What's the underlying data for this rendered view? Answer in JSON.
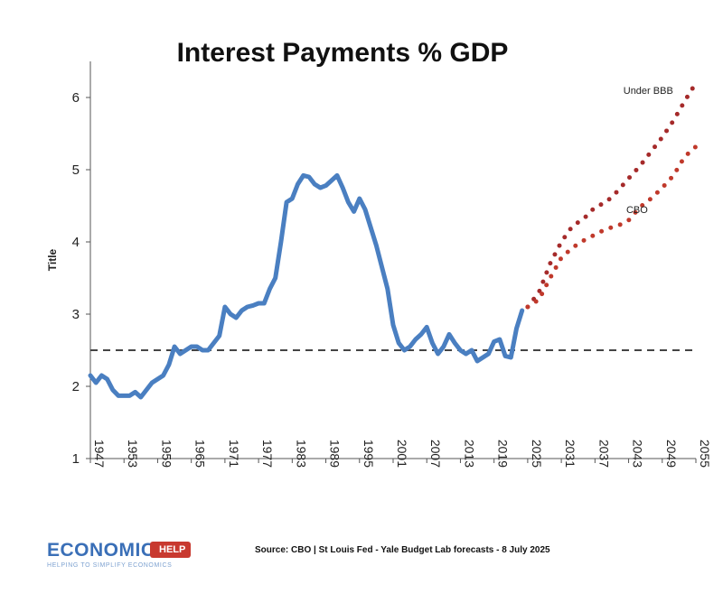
{
  "chart_data": {
    "type": "line",
    "title": "Interest Payments % GDP",
    "ylabel": "Title",
    "xlabel": "",
    "ylim": [
      1,
      6.5
    ],
    "xlim": [
      1947,
      2055
    ],
    "yticks": [
      1,
      2,
      3,
      4,
      5,
      6
    ],
    "xticks": [
      1947,
      1953,
      1959,
      1965,
      1971,
      1977,
      1983,
      1989,
      1995,
      2001,
      2007,
      2013,
      2019,
      2025,
      2031,
      2037,
      2043,
      2049,
      2055
    ],
    "reference_line": {
      "y": 2.5,
      "style": "dashed"
    },
    "series": [
      {
        "style": "solid",
        "color": "#4a7fc1",
        "x": [
          1947,
          1948,
          1949,
          1950,
          1951,
          1952,
          1953,
          1954,
          1955,
          1956,
          1957,
          1958,
          1959,
          1960,
          1961,
          1962,
          1963,
          1964,
          1965,
          1966,
          1967,
          1968,
          1969,
          1970,
          1971,
          1972,
          1973,
          1974,
          1975,
          1976,
          1977,
          1978,
          1979,
          1980,
          1981,
          1982,
          1983,
          1984,
          1985,
          1986,
          1987,
          1988,
          1989,
          1990,
          1991,
          1992,
          1993,
          1994,
          1995,
          1996,
          1997,
          1998,
          1999,
          2000,
          2001,
          2002,
          2003,
          2004,
          2005,
          2006,
          2007,
          2008,
          2009,
          2010,
          2011,
          2012,
          2013,
          2014,
          2015,
          2016,
          2017,
          2018,
          2019,
          2020,
          2021,
          2022,
          2023,
          2024
        ],
        "y": [
          2.15,
          2.05,
          2.15,
          2.1,
          1.95,
          1.87,
          1.87,
          1.87,
          1.92,
          1.85,
          1.95,
          2.05,
          2.1,
          2.15,
          2.3,
          2.55,
          2.45,
          2.5,
          2.55,
          2.55,
          2.5,
          2.5,
          2.6,
          2.7,
          3.1,
          3.0,
          2.95,
          3.05,
          3.1,
          3.12,
          3.15,
          3.15,
          3.35,
          3.5,
          4.0,
          4.55,
          4.6,
          4.8,
          4.92,
          4.9,
          4.8,
          4.75,
          4.78,
          4.85,
          4.92,
          4.75,
          4.55,
          4.42,
          4.6,
          4.45,
          4.2,
          3.95,
          3.65,
          3.35,
          2.85,
          2.6,
          2.5,
          2.55,
          2.65,
          2.72,
          2.82,
          2.6,
          2.45,
          2.55,
          2.72,
          2.6,
          2.5,
          2.45,
          2.5,
          2.35,
          2.4,
          2.45,
          2.62,
          2.65,
          2.42,
          2.4,
          2.8,
          3.05
        ]
      },
      {
        "name": "Under BBB",
        "style": "dotted",
        "color": "#a52a2a",
        "x": [
          2025,
          2027,
          2029,
          2031,
          2033,
          2035,
          2037,
          2039,
          2041,
          2043,
          2045,
          2047,
          2049,
          2051,
          2053,
          2055
        ],
        "y": [
          3.1,
          3.3,
          3.7,
          4.0,
          4.22,
          4.32,
          4.48,
          4.55,
          4.7,
          4.88,
          5.05,
          5.25,
          5.45,
          5.68,
          5.95,
          6.2
        ]
      },
      {
        "name": "CBO",
        "style": "dotted",
        "color": "#c0392b",
        "x": [
          2025,
          2027,
          2029,
          2031,
          2033,
          2035,
          2037,
          2039,
          2041,
          2043,
          2045,
          2047,
          2049,
          2051,
          2053,
          2055
        ],
        "y": [
          3.1,
          3.2,
          3.5,
          3.78,
          3.92,
          4.02,
          4.1,
          4.18,
          4.22,
          4.3,
          4.48,
          4.6,
          4.75,
          4.92,
          5.18,
          5.32
        ]
      }
    ],
    "annotations": [
      {
        "text": "Under BBB",
        "x": 2046.5,
        "y": 6.05
      },
      {
        "text": "CBO",
        "x": 2044.5,
        "y": 4.4
      }
    ]
  },
  "footer": {
    "logo_main": "ECONOMICS",
    "logo_tag": "HELP",
    "logo_sub": "HELPING TO SIMPLIFY ECONOMICS",
    "source": "Source: CBO | St Louis Fed - Yale Budget Lab forecasts - 8 July 2025"
  }
}
